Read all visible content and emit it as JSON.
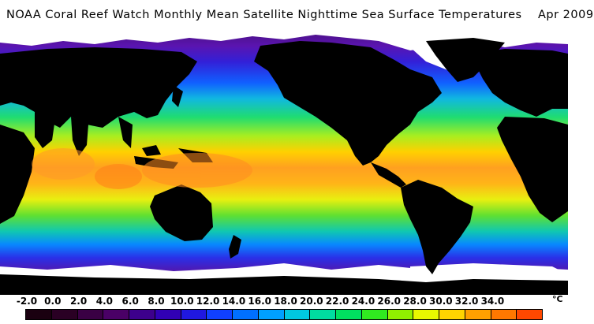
{
  "title": "NOAA Coral Reef Watch Monthly Mean Satellite Nighttime Sea Surface Temperatures    Apr 2009",
  "colors": {
    "land": "#000000",
    "ice": "#ffffff",
    "polar_ocean": "#5a0f8c",
    "cold_ocean": "#3b18d8",
    "cool_ocean": "#0a9cff",
    "temperate_ocean": "#1dde5a",
    "warm_ocean": "#b8f020",
    "hot_ocean": "#ffb000",
    "very_hot_ocean": "#ff8c2a"
  },
  "scale": {
    "labels": [
      "-2.0",
      "0.0",
      "2.0",
      "4.0",
      "6.0",
      "8.0",
      "10.0",
      "12.0",
      "14.0",
      "16.0",
      "18.0",
      "20.0",
      "22.0",
      "24.0",
      "26.0",
      "28.0",
      "30.0",
      "32.0",
      "34.0"
    ],
    "unit": "°C",
    "colors": [
      "#1a0010",
      "#2a0024",
      "#3a0044",
      "#4a0066",
      "#3d008c",
      "#3100b5",
      "#2018e0",
      "#1040ff",
      "#0070ff",
      "#00a0ff",
      "#00c8e0",
      "#00dca0",
      "#00e060",
      "#30ea20",
      "#90f000",
      "#e8f800",
      "#ffd400",
      "#ffa000",
      "#ff7800",
      "#ff4800"
    ]
  }
}
